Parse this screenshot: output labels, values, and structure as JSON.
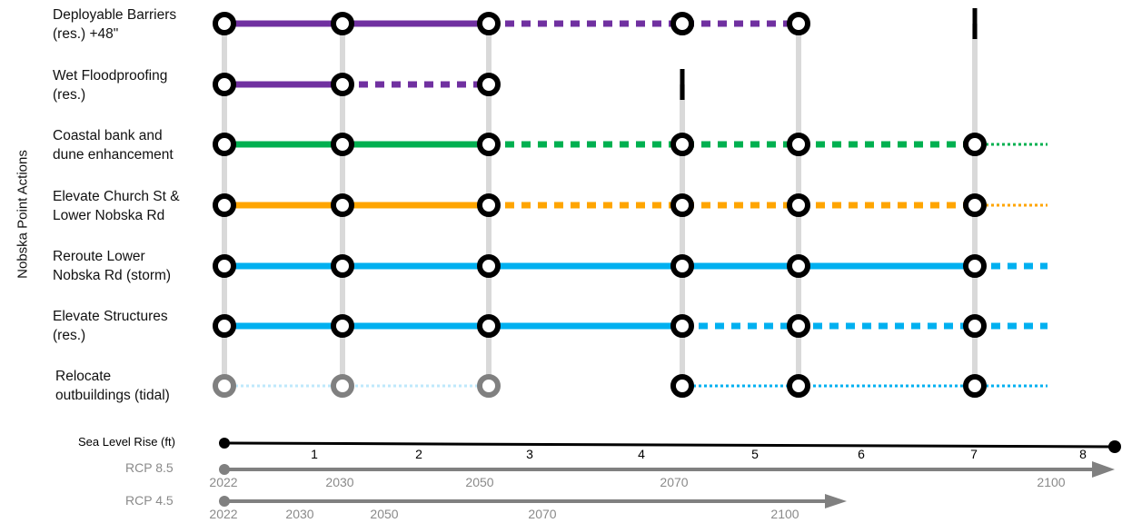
{
  "y_axis_label": "Nobska Point Actions",
  "colors": {
    "purple": "#7030a0",
    "green": "#00b050",
    "orange": "#ffa500",
    "blue": "#00b0f0",
    "light_blue": "#bfe8fb",
    "grid": "#d9d9d9",
    "node": "#000000",
    "node_inactive": "#808080",
    "timeline": "#808080"
  },
  "actions": [
    {
      "lines": [
        "Deployable Barriers",
        "(res.) +48\""
      ],
      "color": "purple",
      "solid_end_node": 2,
      "dashed_end_node": 4,
      "end_marker": "bar",
      "nodes": [
        0,
        1,
        2,
        3,
        4
      ],
      "inactive_nodes": []
    },
    {
      "lines": [
        "Wet Floodproofing",
        "(res.)"
      ],
      "color": "purple",
      "solid_end_node": 1,
      "dashed_end_node": 2,
      "end_marker": "bar",
      "nodes": [
        0,
        1,
        2
      ],
      "inactive_nodes": []
    },
    {
      "lines": [
        "Coastal bank and",
        "dune enhancement"
      ],
      "color": "green",
      "solid_end_node": 2,
      "dashed_end_node": 5,
      "tail": "dotted",
      "nodes": [
        0,
        1,
        2,
        3,
        4,
        5
      ],
      "inactive_nodes": []
    },
    {
      "lines": [
        "Elevate Church St &",
        "Lower Nobska Rd"
      ],
      "color": "orange",
      "solid_end_node": 2,
      "dashed_end_node": 5,
      "tail": "dotted",
      "nodes": [
        0,
        1,
        2,
        3,
        4,
        5
      ],
      "inactive_nodes": []
    },
    {
      "lines": [
        "Reroute Lower",
        "Nobska Rd (storm)"
      ],
      "color": "blue",
      "solid_end_node": 5,
      "dashed_end_node": 5,
      "tail": "dashed",
      "nodes": [
        0,
        1,
        2,
        3,
        4,
        5
      ],
      "inactive_nodes": []
    },
    {
      "lines": [
        "Elevate Structures",
        "(res.)"
      ],
      "color": "blue",
      "solid_end_node": 3,
      "dashed_end_node": 5,
      "tail": "dashed",
      "nodes": [
        0,
        1,
        2,
        3,
        4,
        5
      ],
      "inactive_nodes": []
    },
    {
      "lines": [
        "Relocate",
        "outbuildings (tidal)"
      ],
      "color": "blue",
      "faint_until_node": 2,
      "dotted_end_node": 5,
      "tail": "dotted",
      "nodes": [
        0,
        1,
        2,
        3,
        4,
        5
      ],
      "inactive_nodes": [
        0,
        1,
        2
      ]
    }
  ],
  "sea_level_rise": {
    "title": "Sea Level Rise (ft)",
    "ticks": [
      "1",
      "2",
      "3",
      "4",
      "5",
      "6",
      "7",
      "8"
    ]
  },
  "rcp85": {
    "title": "RCP 8.5",
    "years": [
      "2022",
      "2030",
      "2050",
      "2070",
      "2100"
    ]
  },
  "rcp45": {
    "title": "RCP 4.5",
    "years": [
      "2022",
      "2030",
      "2050",
      "2070",
      "2100"
    ]
  }
}
